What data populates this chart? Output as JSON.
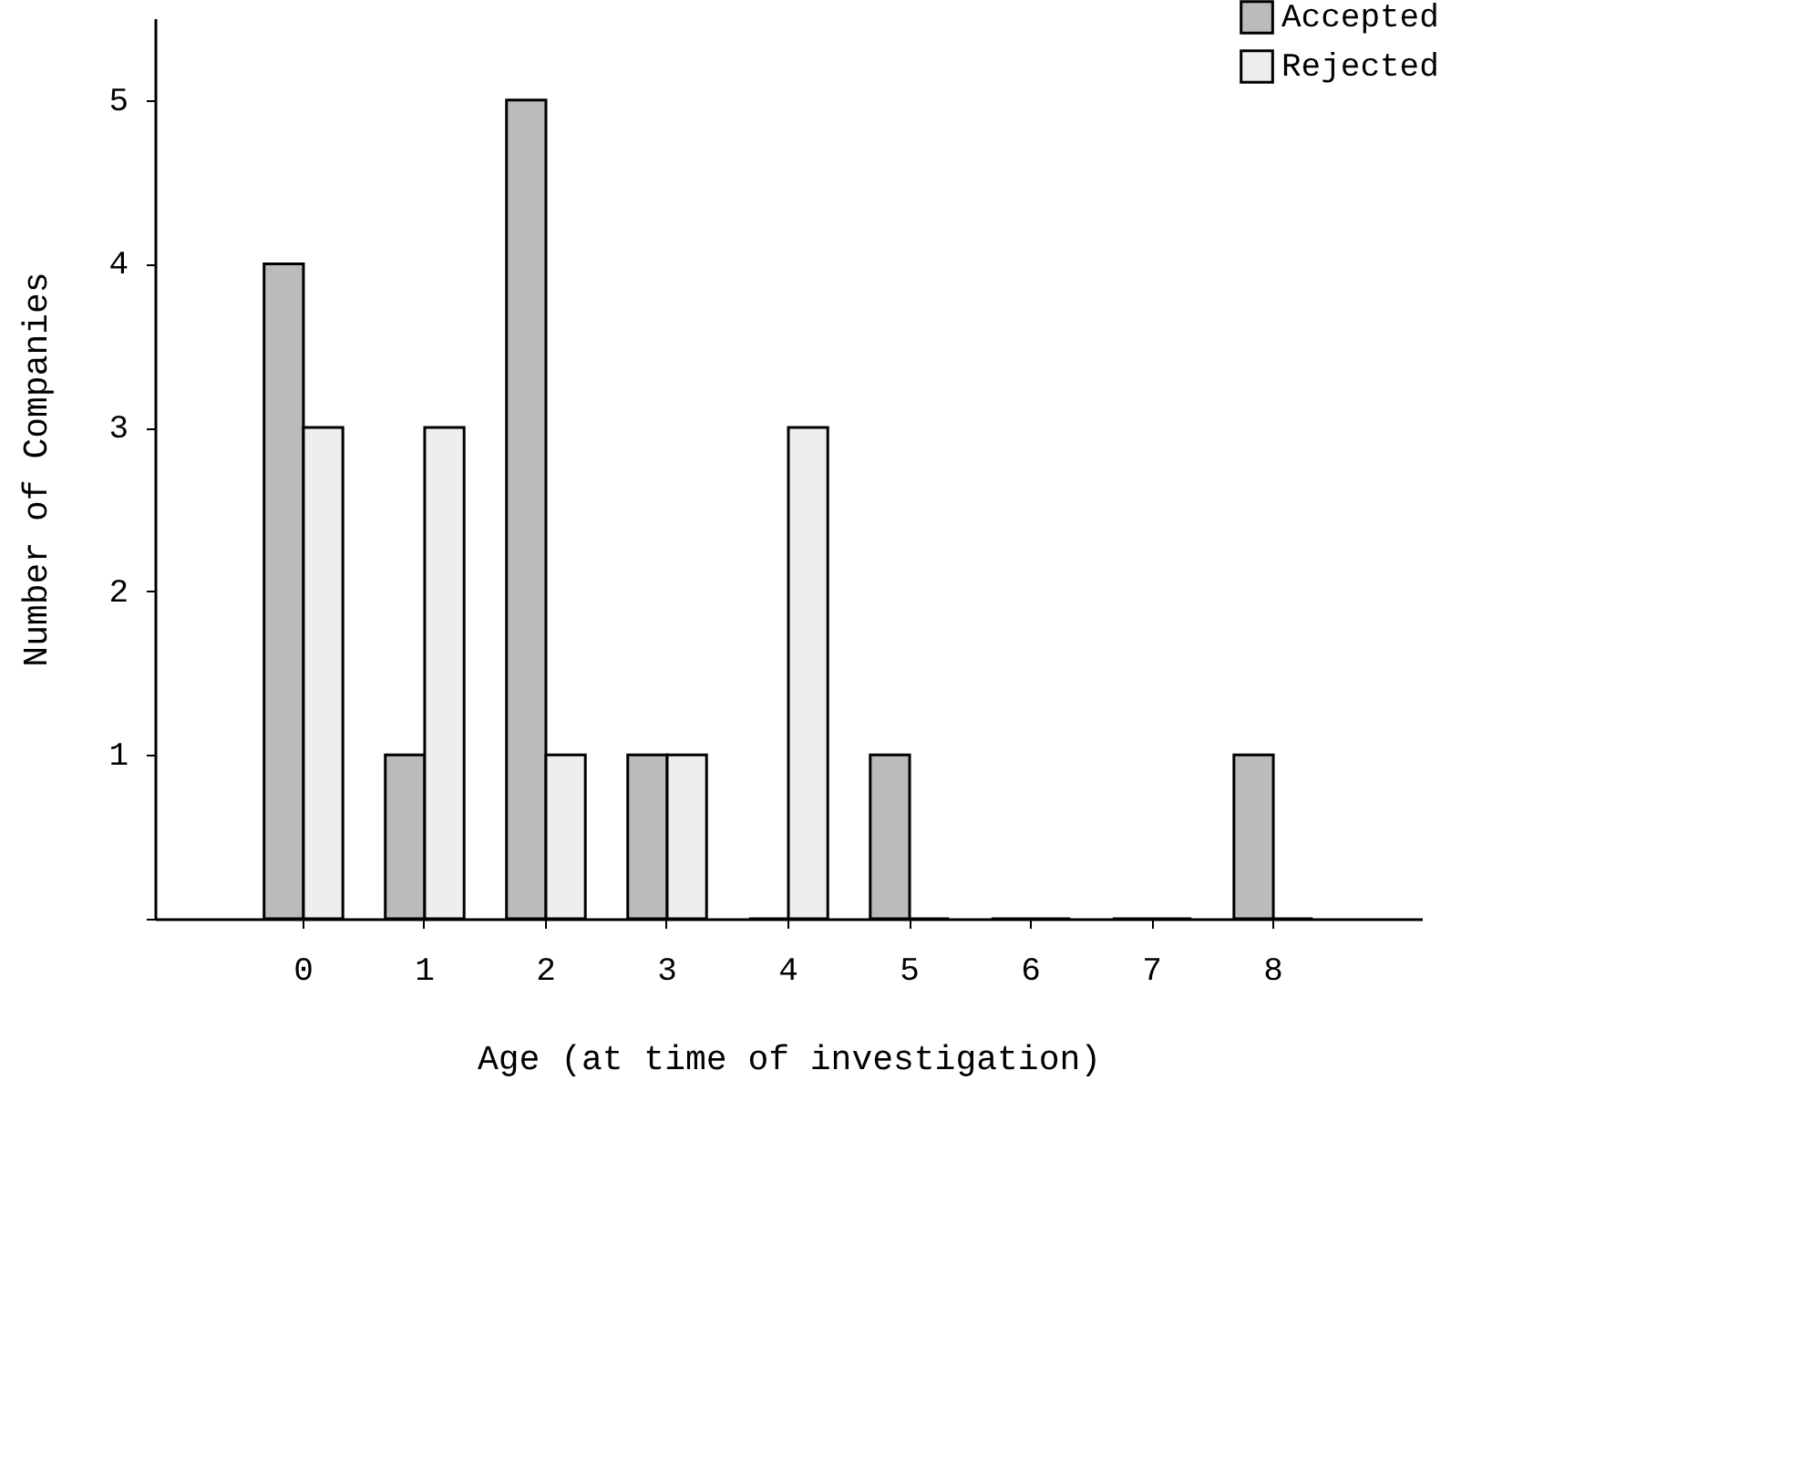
{
  "chart_data": {
    "type": "bar",
    "xlabel": "Age (at time of investigation)",
    "ylabel": "Number of Companies",
    "categories": [
      "0",
      "1",
      "2",
      "3",
      "4",
      "5",
      "6",
      "7",
      "8"
    ],
    "series": [
      {
        "name": "Accepted",
        "color": "#bbbbbb",
        "values": [
          4,
          1,
          5,
          1,
          0,
          1,
          0,
          0,
          1
        ]
      },
      {
        "name": "Rejected",
        "color": "#eeeeee",
        "values": [
          3,
          3,
          1,
          1,
          3,
          0,
          0,
          0,
          0
        ]
      }
    ],
    "ylim": [
      0,
      5.5
    ],
    "yticks": [
      {
        "value": 0,
        "label": null
      },
      1,
      2,
      3,
      4,
      5
    ],
    "grid": false,
    "legend": "top right"
  }
}
